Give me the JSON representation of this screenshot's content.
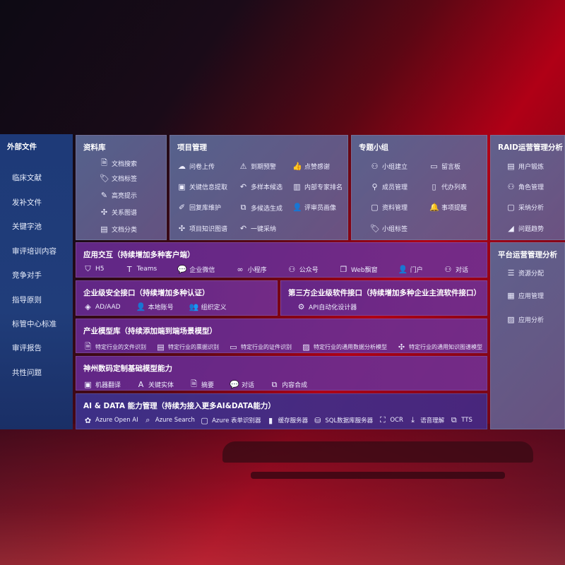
{
  "external": {
    "title": "外部文件",
    "items": [
      "临床文献",
      "发补文件",
      "关键字池",
      "审评培训内容",
      "竞争对手",
      "指导原则",
      "标管中心标准",
      "审评报告",
      "共性问题"
    ]
  },
  "library": {
    "title": "资料库",
    "items": [
      {
        "icon": "doc-search-icon",
        "label": "文档搜索"
      },
      {
        "icon": "tag-icon",
        "label": "文档标签"
      },
      {
        "icon": "pen-icon",
        "label": "高亮提示"
      },
      {
        "icon": "graph-icon",
        "label": "关系图谱"
      },
      {
        "icon": "doc-icon",
        "label": "文档分类"
      }
    ]
  },
  "project": {
    "title": "项目管理",
    "items": [
      {
        "icon": "cloud-upload-icon",
        "label": "问卷上传"
      },
      {
        "icon": "alarm-icon",
        "label": "到期预警"
      },
      {
        "icon": "thumb-up-icon",
        "label": "点赞感谢"
      },
      {
        "icon": "window-icon",
        "label": "关键信息提取"
      },
      {
        "icon": "reply-icon",
        "label": "多样本候选"
      },
      {
        "icon": "rank-icon",
        "label": "内部专家排名"
      },
      {
        "icon": "edit-icon",
        "label": "回复库维护"
      },
      {
        "icon": "puzzle-icon",
        "label": "多候选生成"
      },
      {
        "icon": "person-icon",
        "label": "评审员画像"
      },
      {
        "icon": "graph-icon",
        "label": "项目知识图谱"
      },
      {
        "icon": "reply-icon",
        "label": "一键采纳"
      }
    ]
  },
  "group": {
    "title": "专题小组",
    "items": [
      {
        "icon": "group-icon",
        "label": "小组建立"
      },
      {
        "icon": "bbs-icon",
        "label": "留言板"
      },
      {
        "icon": "user-add-icon",
        "label": "成员管理"
      },
      {
        "icon": "clipboard-icon",
        "label": "代办列表"
      },
      {
        "icon": "folder-icon",
        "label": "资料管理"
      },
      {
        "icon": "bell-icon",
        "label": "事项提醒"
      },
      {
        "icon": "tag-icon",
        "label": "小组标签"
      }
    ]
  },
  "raid": {
    "title": "RAID运营管理分析",
    "items": [
      {
        "icon": "id-card-icon",
        "label": "用户锻炼"
      },
      {
        "icon": "users-icon",
        "label": "角色管理"
      },
      {
        "icon": "qa-icon",
        "label": "采纳分析"
      },
      {
        "icon": "trend-icon",
        "label": "问题趋势"
      }
    ]
  },
  "platform": {
    "title": "平台运营管理分析",
    "items": [
      {
        "icon": "list-icon",
        "label": "资源分配"
      },
      {
        "icon": "apps-icon",
        "label": "应用管理"
      },
      {
        "icon": "chart-icon",
        "label": "应用分析"
      }
    ]
  },
  "interaction": {
    "title": "应用交互（持续增加多种客户端）",
    "items": [
      {
        "icon": "html5-icon",
        "label": "H5"
      },
      {
        "icon": "teams-icon",
        "label": "Teams"
      },
      {
        "icon": "wechat-icon",
        "label": "企业微信"
      },
      {
        "icon": "miniprogram-icon",
        "label": "小程序"
      },
      {
        "icon": "users-icon",
        "label": "公众号"
      },
      {
        "icon": "window-icon",
        "label": "Web飘窗"
      },
      {
        "icon": "portal-icon",
        "label": "门户"
      },
      {
        "icon": "chat-icon",
        "label": "对话"
      }
    ]
  },
  "security": {
    "title": "企业级安全接口（持续增加多种认证）",
    "items": [
      {
        "icon": "ad-icon",
        "label": "AD/AAD"
      },
      {
        "icon": "user-icon",
        "label": "本地账号"
      },
      {
        "icon": "org-icon",
        "label": "组织定义"
      }
    ]
  },
  "thirdparty": {
    "title": "第三方企业级软件接口（持续增加多种企业主流软件接口）",
    "items": [
      {
        "icon": "gear-icon",
        "label": "API自动化设计器"
      }
    ]
  },
  "industry": {
    "title": "产业模型库（持续添加端到端场景模型）",
    "items": [
      {
        "icon": "file-icon",
        "label": "特定行业的文件识别"
      },
      {
        "icon": "receipt-icon",
        "label": "特定行业的票据识别"
      },
      {
        "icon": "id-card-icon",
        "label": "特定行业的证件识别"
      },
      {
        "icon": "image-icon",
        "label": "特定行业的通用数据分析模型"
      },
      {
        "icon": "graph-icon",
        "label": "特定行业的通用知识图谱模型"
      }
    ]
  },
  "base": {
    "title": "神州数码定制基础模型能力",
    "items": [
      {
        "icon": "translate-icon",
        "label": "机器翻译"
      },
      {
        "icon": "entity-icon",
        "label": "关键实体"
      },
      {
        "icon": "summary-icon",
        "label": "摘要"
      },
      {
        "icon": "chat-icon",
        "label": "对话"
      },
      {
        "icon": "puzzle-icon",
        "label": "内容合成"
      }
    ]
  },
  "aidata": {
    "title": "AI & DATA 能力管理（持续为接入更多AI&DATA能力）",
    "items": [
      {
        "icon": "openai-icon",
        "label": "Azure Open AI"
      },
      {
        "icon": "search-icon",
        "label": "Azure Search"
      },
      {
        "icon": "form-icon",
        "label": "Azure 表单识别器"
      },
      {
        "icon": "cache-icon",
        "label": "缓存服务器"
      },
      {
        "icon": "database-icon",
        "label": "SQL数据库服务器"
      },
      {
        "icon": "ocr-icon",
        "label": "OCR"
      },
      {
        "icon": "speech-icon",
        "label": "语音理解"
      },
      {
        "icon": "tts-icon",
        "label": "TTS"
      }
    ]
  }
}
